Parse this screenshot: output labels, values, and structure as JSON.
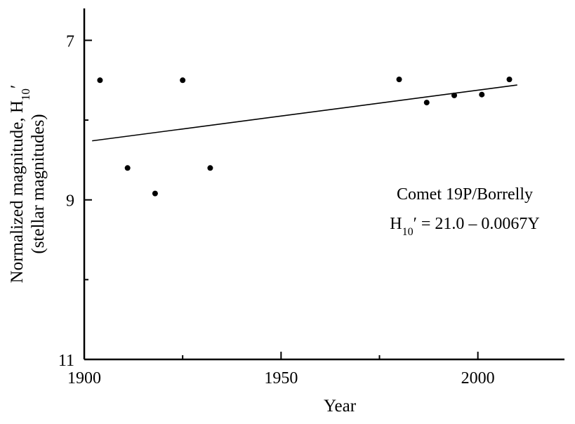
{
  "chart_data": {
    "type": "scatter",
    "title": "",
    "xlabel": "Year",
    "ylabel_line1": "Normalized magnitude, H",
    "ylabel_sub": "10",
    "ylabel_prime": "′",
    "ylabel_line2": "(stellar magnitudes)",
    "xlim": [
      1900,
      2022
    ],
    "ylim": [
      11,
      6.6
    ],
    "y_inverted": true,
    "x_ticks": [
      1900,
      1950,
      2000
    ],
    "x_tick_labels": [
      "1900",
      "1950",
      "2000"
    ],
    "x_minor_ticks": [
      1925,
      1975
    ],
    "y_ticks": [
      7,
      9,
      11
    ],
    "y_tick_labels": [
      "7",
      "9",
      "11"
    ],
    "y_minor_ticks": [
      8,
      10
    ],
    "series": [
      {
        "points": [
          {
            "x": 1904,
            "y": 7.5
          },
          {
            "x": 1911,
            "y": 8.6
          },
          {
            "x": 1918,
            "y": 8.92
          },
          {
            "x": 1925,
            "y": 7.5
          },
          {
            "x": 1932,
            "y": 8.6
          },
          {
            "x": 1980,
            "y": 7.49
          },
          {
            "x": 1987,
            "y": 7.78
          },
          {
            "x": 1994,
            "y": 7.69
          },
          {
            "x": 2001,
            "y": 7.68
          },
          {
            "x": 2008,
            "y": 7.49
          }
        ]
      }
    ],
    "fit_line": {
      "x": [
        1902,
        2010
      ],
      "y": [
        8.26,
        7.56
      ]
    },
    "annotation": {
      "line1": "Comet 19P/Borrelly",
      "line2_prefix": "H",
      "line2_sub": "10",
      "line2_suffix": "′ = 21.0 – 0.0067Y"
    },
    "grid": false,
    "legend": "none"
  }
}
